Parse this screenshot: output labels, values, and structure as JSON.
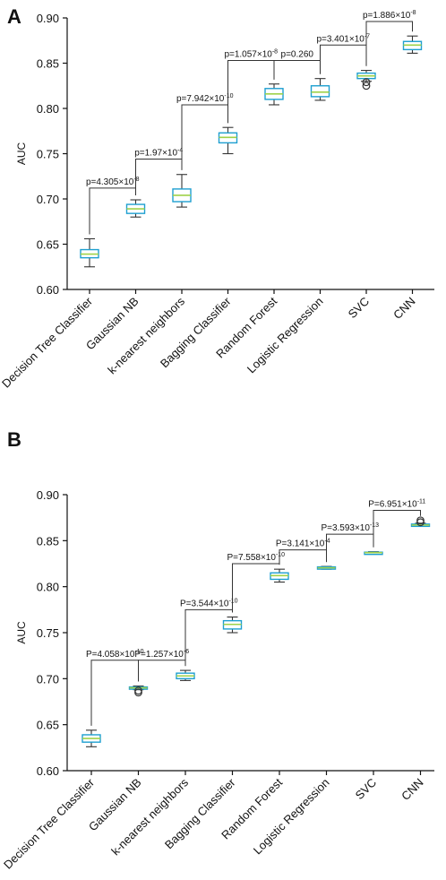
{
  "colors": {
    "box_stroke": "#1e9fd0",
    "median": "#9fd24a",
    "whisker": "#333333",
    "outlier": "#333333"
  },
  "chart_data": [
    {
      "panel": "A",
      "type": "box",
      "ylabel": "AUC",
      "ylim": [
        0.6,
        0.9
      ],
      "yticks": [
        "0.60",
        "0.65",
        "0.70",
        "0.75",
        "0.80",
        "0.85",
        "0.90"
      ],
      "categories": [
        "Decision Tree Classifier",
        "Gaussian NB",
        "k-nearest neighbors",
        "Bagging Classifier",
        "Random Forest",
        "Logistic Regression",
        "SVC",
        "CNN"
      ],
      "boxes": [
        {
          "min": 0.625,
          "q1": 0.635,
          "median": 0.639,
          "q3": 0.644,
          "max": 0.656,
          "outliers": []
        },
        {
          "min": 0.68,
          "q1": 0.684,
          "median": 0.689,
          "q3": 0.694,
          "max": 0.699,
          "outliers": []
        },
        {
          "min": 0.691,
          "q1": 0.697,
          "median": 0.704,
          "q3": 0.711,
          "max": 0.727,
          "outliers": []
        },
        {
          "min": 0.75,
          "q1": 0.762,
          "median": 0.768,
          "q3": 0.773,
          "max": 0.779,
          "outliers": []
        },
        {
          "min": 0.804,
          "q1": 0.81,
          "median": 0.816,
          "q3": 0.822,
          "max": 0.827,
          "outliers": []
        },
        {
          "min": 0.809,
          "q1": 0.813,
          "median": 0.818,
          "q3": 0.825,
          "max": 0.833,
          "outliers": []
        },
        {
          "min": 0.83,
          "q1": 0.833,
          "median": 0.836,
          "q3": 0.839,
          "max": 0.842,
          "outliers": [
            0.829,
            0.825
          ]
        },
        {
          "min": 0.861,
          "q1": 0.865,
          "median": 0.87,
          "q3": 0.874,
          "max": 0.88,
          "outliers": []
        }
      ],
      "comparisons": [
        {
          "from": 0,
          "to": 1,
          "y": 0.712,
          "base": "p=4.305×10",
          "exp": "-8"
        },
        {
          "from": 1,
          "to": 2,
          "y": 0.744,
          "base": "p=1.97×10",
          "exp": "-4"
        },
        {
          "from": 2,
          "to": 3,
          "y": 0.804,
          "base": "p=7.942×10",
          "exp": "-10"
        },
        {
          "from": 3,
          "to": 4,
          "y": 0.853,
          "base": "p=1.057×10",
          "exp": "-8"
        },
        {
          "from": 4,
          "to": 5,
          "y": 0.853,
          "base": "p=0.260",
          "exp": ""
        },
        {
          "from": 5,
          "to": 6,
          "y": 0.87,
          "base": "p=3.401×10",
          "exp": "-7"
        },
        {
          "from": 6,
          "to": 7,
          "y": 0.896,
          "base": "p=1.886×10",
          "exp": "-8"
        }
      ]
    },
    {
      "panel": "B",
      "type": "box",
      "ylabel": "AUC",
      "ylim": [
        0.6,
        0.9
      ],
      "yticks": [
        "0.60",
        "0.65",
        "0.70",
        "0.75",
        "0.80",
        "0.85",
        "0.90"
      ],
      "categories": [
        "Decision Tree Classifier",
        "Gaussian NB",
        "k-nearest neighbors",
        "Bagging Classifier",
        "Random Forest",
        "Logistic Regression",
        "SVC",
        "CNN"
      ],
      "boxes": [
        {
          "min": 0.626,
          "q1": 0.631,
          "median": 0.635,
          "q3": 0.639,
          "max": 0.644,
          "outliers": []
        },
        {
          "min": 0.688,
          "q1": 0.689,
          "median": 0.69,
          "q3": 0.691,
          "max": 0.692,
          "outliers": [
            0.687,
            0.685
          ]
        },
        {
          "min": 0.698,
          "q1": 0.7,
          "median": 0.703,
          "q3": 0.706,
          "max": 0.709,
          "outliers": []
        },
        {
          "min": 0.75,
          "q1": 0.754,
          "median": 0.759,
          "q3": 0.763,
          "max": 0.767,
          "outliers": []
        },
        {
          "min": 0.805,
          "q1": 0.808,
          "median": 0.812,
          "q3": 0.815,
          "max": 0.819,
          "outliers": []
        },
        {
          "min": 0.819,
          "q1": 0.8195,
          "median": 0.8205,
          "q3": 0.8215,
          "max": 0.822,
          "outliers": []
        },
        {
          "min": 0.836,
          "q1": 0.8365,
          "median": 0.837,
          "q3": 0.8375,
          "max": 0.838,
          "outliers": []
        },
        {
          "min": 0.866,
          "q1": 0.866,
          "median": 0.867,
          "q3": 0.868,
          "max": 0.869,
          "outliers": [
            0.87,
            0.872
          ]
        }
      ],
      "comparisons": [
        {
          "from": 0,
          "to": 1,
          "y": 0.72,
          "base": "P=4.058×10",
          "exp": "-10"
        },
        {
          "from": 1,
          "to": 2,
          "y": 0.72,
          "base": "P=1.257×10",
          "exp": "-6"
        },
        {
          "from": 2,
          "to": 3,
          "y": 0.775,
          "base": "P=3.544×10",
          "exp": "-10"
        },
        {
          "from": 3,
          "to": 4,
          "y": 0.825,
          "base": "P=7.558×10",
          "exp": "-10"
        },
        {
          "from": 4,
          "to": 5,
          "y": 0.84,
          "base": "P=3.141×10",
          "exp": "-4"
        },
        {
          "from": 5,
          "to": 6,
          "y": 0.857,
          "base": "P=3.593×10",
          "exp": "-13"
        },
        {
          "from": 6,
          "to": 7,
          "y": 0.883,
          "base": "P=6.951×10",
          "exp": "-11"
        }
      ]
    }
  ]
}
